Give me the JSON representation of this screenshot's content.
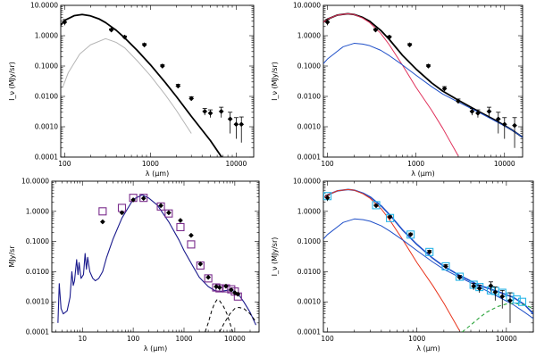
{
  "colors": {
    "black": "#000000",
    "gray": "#b5b5b5",
    "red": "#e0305a",
    "red_orange": "#e8341c",
    "blue": "#1f4fc8",
    "navy": "#1a1a8c",
    "purple": "#7a2c8c",
    "cyan": "#29b6e8",
    "green": "#2aa43a"
  },
  "chart_data": [
    {
      "type": "line",
      "panel": "top-left",
      "xlabel": "λ (μm)",
      "ylabel": "I_ν (MJy/sr)",
      "xlim": [
        90,
        16000
      ],
      "ylim": [
        0.0001,
        10
      ],
      "xscale": "log",
      "yscale": "log",
      "xticks": [
        "100",
        "1000",
        "10000"
      ],
      "yticks": [
        "0.0001",
        "0.0010",
        "0.0100",
        "0.1000",
        "1.0000",
        "10.0000"
      ],
      "series": [
        {
          "style": "black-solid-thick",
          "x": [
            90,
            100,
            130,
            160,
            200,
            250,
            300,
            400,
            500,
            700,
            1000,
            1500,
            2000,
            3000,
            5000,
            8000
          ],
          "y": [
            2.2,
            3.2,
            4.6,
            5.0,
            4.5,
            3.6,
            2.7,
            1.5,
            0.85,
            0.33,
            0.11,
            0.028,
            0.01,
            0.0022,
            0.00035,
            5e-05
          ]
        },
        {
          "style": "gray-solid",
          "x": [
            95,
            110,
            150,
            200,
            300,
            400,
            500,
            700,
            1000,
            1500,
            2000,
            3000
          ],
          "y": [
            0.02,
            0.06,
            0.25,
            0.5,
            0.8,
            0.6,
            0.4,
            0.15,
            0.048,
            0.011,
            0.0035,
            0.0006
          ]
        }
      ],
      "points": [
        {
          "x": 100,
          "y": 2.8,
          "err": 0.6
        },
        {
          "x": 350,
          "y": 1.55,
          "err": 0.15
        },
        {
          "x": 500,
          "y": 0.9,
          "err": 0.08
        },
        {
          "x": 850,
          "y": 0.5,
          "err": 0.05
        },
        {
          "x": 1380,
          "y": 0.1,
          "err": 0.012
        },
        {
          "x": 2100,
          "y": 0.022,
          "err": 0.003
        },
        {
          "x": 3000,
          "y": 0.0085,
          "err": 0.0012
        },
        {
          "x": 4300,
          "y": 0.0032,
          "err": 0.0008
        },
        {
          "x": 5000,
          "y": 0.0028,
          "err": 0.0008
        },
        {
          "x": 6700,
          "y": 0.0032,
          "err": 0.0012
        },
        {
          "x": 8500,
          "y": 0.0018,
          "err": 0.0012
        },
        {
          "x": 10000,
          "y": 0.0012,
          "err": 0.0008
        },
        {
          "x": 11500,
          "y": 0.0012,
          "err": 0.0009
        }
      ]
    },
    {
      "type": "line",
      "panel": "top-right",
      "xlabel": "λ (μm)",
      "ylabel": "I_ν (MJy/sr)",
      "xlim": [
        90,
        16000
      ],
      "ylim": [
        0.0001,
        10
      ],
      "xscale": "log",
      "yscale": "log",
      "xticks": [
        "100",
        "1000",
        "10000"
      ],
      "yticks": [
        "0.0001",
        "0.0010",
        "0.0100",
        "0.1000",
        "1.0000",
        "10.0000"
      ],
      "series": [
        {
          "style": "black-solid-thick",
          "x": [
            90,
            100,
            130,
            170,
            200,
            250,
            300,
            400,
            500,
            700,
            1000,
            1500,
            2000,
            3000,
            5000,
            8000,
            12000,
            16000
          ],
          "y": [
            2.8,
            3.5,
            4.8,
            5.3,
            5.0,
            4.0,
            3.0,
            1.5,
            0.75,
            0.23,
            0.08,
            0.028,
            0.015,
            0.0075,
            0.0033,
            0.0016,
            0.0008,
            0.00045
          ]
        },
        {
          "style": "red-solid",
          "x": [
            90,
            100,
            130,
            170,
            200,
            250,
            300,
            400,
            500,
            700,
            1000,
            1500,
            2000,
            3000
          ],
          "y": [
            2.8,
            3.5,
            4.8,
            5.3,
            5.0,
            3.8,
            2.7,
            1.2,
            0.5,
            0.11,
            0.02,
            0.0035,
            0.0009,
            0.00011
          ]
        },
        {
          "style": "blue-solid",
          "x": [
            90,
            100,
            150,
            200,
            250,
            300,
            400,
            500,
            700,
            1000,
            1500,
            2000,
            3000,
            5000,
            8000,
            12000,
            16000
          ],
          "y": [
            0.12,
            0.17,
            0.43,
            0.56,
            0.53,
            0.47,
            0.33,
            0.22,
            0.11,
            0.05,
            0.021,
            0.012,
            0.0065,
            0.0031,
            0.0015,
            0.0008,
            0.00045
          ]
        }
      ],
      "points": [
        {
          "x": 100,
          "y": 2.8,
          "err": 0.6
        },
        {
          "x": 350,
          "y": 1.55,
          "err": 0.15
        },
        {
          "x": 500,
          "y": 0.9,
          "err": 0.08
        },
        {
          "x": 850,
          "y": 0.5,
          "err": 0.05
        },
        {
          "x": 1380,
          "y": 0.1,
          "err": 0.012
        },
        {
          "x": 2100,
          "y": 0.018,
          "err": 0.003
        },
        {
          "x": 3000,
          "y": 0.007,
          "err": 0.0012
        },
        {
          "x": 4300,
          "y": 0.0032,
          "err": 0.0008
        },
        {
          "x": 5000,
          "y": 0.0028,
          "err": 0.0008
        },
        {
          "x": 6700,
          "y": 0.0032,
          "err": 0.0012
        },
        {
          "x": 8500,
          "y": 0.0018,
          "err": 0.0012
        },
        {
          "x": 10000,
          "y": 0.0012,
          "err": 0.0008
        },
        {
          "x": 13000,
          "y": 0.0011,
          "err": 0.0009
        }
      ]
    },
    {
      "type": "line",
      "panel": "bottom-left",
      "xlabel": "λ (μm)",
      "ylabel": "MJy/sr",
      "xlim": [
        2.5,
        30000
      ],
      "ylim": [
        0.0001,
        10
      ],
      "xscale": "log",
      "yscale": "log",
      "xticks": [
        "10",
        "100",
        "1000",
        "10000"
      ],
      "yticks": [
        "0.0001",
        "0.0010",
        "0.0100",
        "0.1000",
        "1.0000",
        "10.0000"
      ],
      "series": [
        {
          "style": "navy-solid",
          "x": [
            3.3,
            3.5,
            3.8,
            4.2,
            5,
            5.7,
            6.2,
            6.6,
            7.0,
            7.7,
            8.2,
            8.6,
            9.4,
            10.5,
            11.3,
            12,
            12.7,
            14,
            16,
            18,
            21,
            25,
            30,
            40,
            60,
            100,
            150,
            200,
            300,
            500,
            800,
            1000,
            1500,
            2000,
            3000,
            4000,
            5000,
            6000,
            8000,
            10000,
            12000,
            15000,
            20000,
            26000
          ],
          "y": [
            0.0002,
            0.004,
            0.0006,
            0.0004,
            0.0005,
            0.0014,
            0.01,
            0.0035,
            0.005,
            0.025,
            0.008,
            0.02,
            0.006,
            0.008,
            0.04,
            0.012,
            0.03,
            0.01,
            0.006,
            0.005,
            0.006,
            0.01,
            0.03,
            0.12,
            0.6,
            2.5,
            3.5,
            2.8,
            1.6,
            0.45,
            0.11,
            0.05,
            0.015,
            0.0065,
            0.0032,
            0.0024,
            0.0022,
            0.0023,
            0.0025,
            0.0022,
            0.0017,
            0.001,
            0.00045,
            0.00017
          ]
        },
        {
          "style": "black-dashed",
          "x": [
            2600,
            3000,
            3500,
            4000,
            4500,
            5000,
            6000,
            7000,
            8000,
            9000
          ],
          "y": [
            0.0001,
            0.0002,
            0.0005,
            0.0009,
            0.0012,
            0.0011,
            0.0007,
            0.0004,
            0.0002,
            0.0001
          ]
        },
        {
          "style": "black-dashed",
          "x": [
            5000,
            6000,
            8000,
            10000,
            12000,
            15000,
            20000,
            26000
          ],
          "y": [
            0.0001,
            0.00018,
            0.0004,
            0.0006,
            0.00065,
            0.0006,
            0.0004,
            0.00022
          ]
        }
      ],
      "points": [
        {
          "x": 25,
          "y": 0.45
        },
        {
          "x": 60,
          "y": 0.9
        },
        {
          "x": 100,
          "y": 2.4
        },
        {
          "x": 160,
          "y": 2.7
        },
        {
          "x": 350,
          "y": 1.55
        },
        {
          "x": 500,
          "y": 0.9
        },
        {
          "x": 850,
          "y": 0.5
        },
        {
          "x": 1380,
          "y": 0.16
        },
        {
          "x": 2100,
          "y": 0.018
        },
        {
          "x": 3000,
          "y": 0.0065
        },
        {
          "x": 4300,
          "y": 0.0032
        },
        {
          "x": 5000,
          "y": 0.003
        },
        {
          "x": 6700,
          "y": 0.0033
        },
        {
          "x": 8500,
          "y": 0.0025
        },
        {
          "x": 10000,
          "y": 0.002
        },
        {
          "x": 11500,
          "y": 0.0018
        }
      ],
      "model_boxes": [
        {
          "x": 25,
          "y": 1.0
        },
        {
          "x": 60,
          "y": 1.3
        },
        {
          "x": 100,
          "y": 2.8
        },
        {
          "x": 160,
          "y": 2.8
        },
        {
          "x": 350,
          "y": 1.45
        },
        {
          "x": 500,
          "y": 0.85
        },
        {
          "x": 850,
          "y": 0.3
        },
        {
          "x": 1380,
          "y": 0.08
        },
        {
          "x": 2100,
          "y": 0.016
        },
        {
          "x": 3000,
          "y": 0.006
        },
        {
          "x": 4300,
          "y": 0.003
        },
        {
          "x": 5000,
          "y": 0.0028
        },
        {
          "x": 6700,
          "y": 0.0028
        },
        {
          "x": 8500,
          "y": 0.0026
        },
        {
          "x": 10000,
          "y": 0.0022
        },
        {
          "x": 11500,
          "y": 0.0015
        }
      ]
    },
    {
      "type": "line",
      "panel": "bottom-right",
      "xlabel": "λ (μm)",
      "ylabel": "I_ν (MJy/sr)",
      "xlim": [
        90,
        20000
      ],
      "ylim": [
        0.0001,
        10
      ],
      "xscale": "log",
      "yscale": "log",
      "xticks": [
        "100",
        "1000",
        "10000"
      ],
      "yticks": [
        "0.0001",
        "0.0010",
        "0.0100",
        "0.1000",
        "1.0000",
        "10.0000"
      ],
      "series": [
        {
          "style": "blue-solid-thick",
          "x": [
            90,
            100,
            130,
            170,
            200,
            250,
            300,
            400,
            500,
            700,
            1000,
            1500,
            2000,
            3000,
            5000,
            8000,
            12000,
            16000,
            20000
          ],
          "y": [
            2.8,
            3.5,
            4.8,
            5.3,
            5.0,
            4.0,
            3.0,
            1.5,
            0.75,
            0.23,
            0.08,
            0.028,
            0.015,
            0.0075,
            0.0035,
            0.0022,
            0.0014,
            0.0008,
            0.0004
          ]
        },
        {
          "style": "red-orange-solid",
          "x": [
            90,
            100,
            130,
            170,
            200,
            250,
            300,
            400,
            500,
            700,
            1000,
            1500,
            2000,
            3000
          ],
          "y": [
            2.8,
            3.5,
            4.8,
            5.3,
            5.0,
            3.8,
            2.7,
            1.2,
            0.5,
            0.11,
            0.02,
            0.0035,
            0.0009,
            0.00011
          ]
        },
        {
          "style": "blue-solid",
          "x": [
            90,
            100,
            150,
            200,
            250,
            300,
            400,
            500,
            700,
            1000,
            1500,
            2000,
            3000,
            5000,
            8000,
            12000,
            16000,
            20000
          ],
          "y": [
            0.12,
            0.17,
            0.43,
            0.56,
            0.53,
            0.47,
            0.33,
            0.22,
            0.11,
            0.05,
            0.021,
            0.012,
            0.0065,
            0.0031,
            0.0015,
            0.0008,
            0.00045,
            0.00028
          ]
        },
        {
          "style": "green-dashed",
          "x": [
            3200,
            4000,
            5000,
            6000,
            8000,
            10000,
            12000,
            16000,
            20000
          ],
          "y": [
            0.0001,
            0.00017,
            0.0003,
            0.00045,
            0.0007,
            0.00085,
            0.0009,
            0.0008,
            0.0006
          ]
        }
      ],
      "points": [
        {
          "x": 100,
          "y": 2.8,
          "err": 0.6
        },
        {
          "x": 350,
          "y": 1.55,
          "err": 0.15
        },
        {
          "x": 500,
          "y": 0.65,
          "err": 0.06
        },
        {
          "x": 850,
          "y": 0.17,
          "err": 0.02
        },
        {
          "x": 1380,
          "y": 0.045,
          "err": 0.006
        },
        {
          "x": 2100,
          "y": 0.015,
          "err": 0.002
        },
        {
          "x": 3000,
          "y": 0.0065,
          "err": 0.001
        },
        {
          "x": 4300,
          "y": 0.0033,
          "err": 0.0008
        },
        {
          "x": 5000,
          "y": 0.0028,
          "err": 0.0008
        },
        {
          "x": 6700,
          "y": 0.0034,
          "err": 0.0012
        },
        {
          "x": 7500,
          "y": 0.0021,
          "err": 0.001
        },
        {
          "x": 9000,
          "y": 0.0015,
          "err": 0.0009
        },
        {
          "x": 11000,
          "y": 0.0011,
          "err": 0.0009
        }
      ],
      "model_boxes": [
        {
          "x": 100,
          "y": 3.2
        },
        {
          "x": 350,
          "y": 1.6
        },
        {
          "x": 500,
          "y": 0.6
        },
        {
          "x": 850,
          "y": 0.17
        },
        {
          "x": 1380,
          "y": 0.045
        },
        {
          "x": 2100,
          "y": 0.015
        },
        {
          "x": 3000,
          "y": 0.0068
        },
        {
          "x": 4300,
          "y": 0.0037
        },
        {
          "x": 5000,
          "y": 0.0031
        },
        {
          "x": 6700,
          "y": 0.0024
        },
        {
          "x": 7500,
          "y": 0.0023
        },
        {
          "x": 9000,
          "y": 0.002
        },
        {
          "x": 11000,
          "y": 0.0015
        },
        {
          "x": 13000,
          "y": 0.0012
        },
        {
          "x": 15000,
          "y": 0.001
        }
      ]
    }
  ]
}
